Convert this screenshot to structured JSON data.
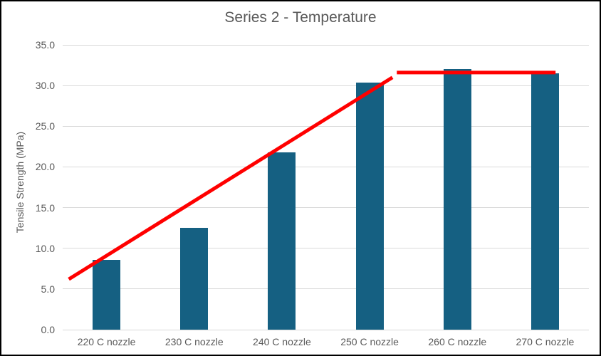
{
  "window": {
    "background": "#FFFFFF",
    "border_color": "#000000"
  },
  "chart_data": {
    "type": "bar",
    "title": "Series 2 - Temperature",
    "xlabel": "",
    "ylabel": "Tensile Strength (MPa)",
    "categories": [
      "220 C nozzle",
      "230 C nozzle",
      "240 C nozzle",
      "250 C nozzle",
      "260 C nozzle",
      "270 C nozzle"
    ],
    "values": [
      8.6,
      12.5,
      21.8,
      30.4,
      32.0,
      31.5
    ],
    "ylim": [
      0,
      35
    ],
    "ytick_step": 5,
    "ytick_labels": [
      "0.0",
      "5.0",
      "10.0",
      "15.0",
      "20.0",
      "25.0",
      "30.0",
      "35.0"
    ],
    "grid": true,
    "legend_position": "none",
    "colors": {
      "bar": "#156082",
      "trend_line": "#FF0000",
      "gridline": "#D9D9D9",
      "axis_line": "#D9D9D9",
      "text": "#595959"
    },
    "trend_line": {
      "color": "#FF0000",
      "stroke_px": 5,
      "x_units": "category-index-from-plot-left",
      "segments": [
        {
          "x1": 0.07,
          "y1": 6.2,
          "x2": 3.76,
          "y2": 31.0
        },
        {
          "x1": 3.81,
          "y1": 31.6,
          "x2": 5.62,
          "y2": 31.6
        }
      ]
    }
  }
}
